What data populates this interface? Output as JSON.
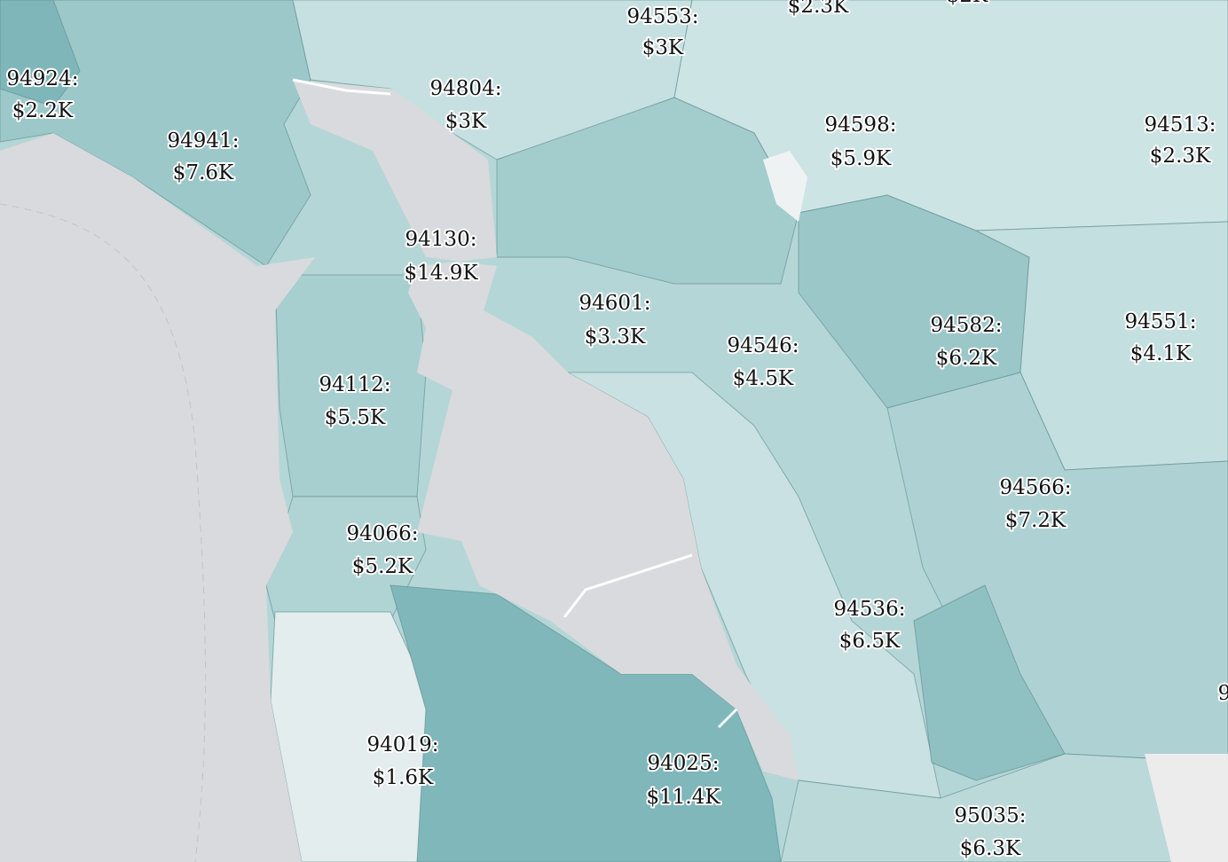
{
  "labels": [
    {
      "zip": "94553:",
      "value": "$3K"
    },
    {
      "zip": "94924:",
      "value": "$2.2K"
    },
    {
      "zip": "94804:",
      "value": "$3K"
    },
    {
      "zip": "94941:",
      "value": "$7.6K"
    },
    {
      "zip": "94598:",
      "value": "$5.9K"
    },
    {
      "zip": "94513:",
      "value": "$2.3K"
    },
    {
      "zip": "94130:",
      "value": "$14.9K"
    },
    {
      "zip": "94601:",
      "value": "$3.3K"
    },
    {
      "zip": "94546:",
      "value": "$4.5K"
    },
    {
      "zip": "94582:",
      "value": "$6.2K"
    },
    {
      "zip": "94551:",
      "value": "$4.1K"
    },
    {
      "zip": "94112:",
      "value": "$5.5K"
    },
    {
      "zip": "94566:",
      "value": "$7.2K"
    },
    {
      "zip": "94066:",
      "value": "$5.2K"
    },
    {
      "zip": "94536:",
      "value": "$6.5K"
    },
    {
      "zip": "94019:",
      "value": "$1.6K"
    },
    {
      "zip": "94025:",
      "value": "$11.4K"
    },
    {
      "zip": "95035:",
      "value": "$6.3K"
    }
  ],
  "partial_labels": [
    "$2.3K",
    "$2K",
    "9"
  ]
}
